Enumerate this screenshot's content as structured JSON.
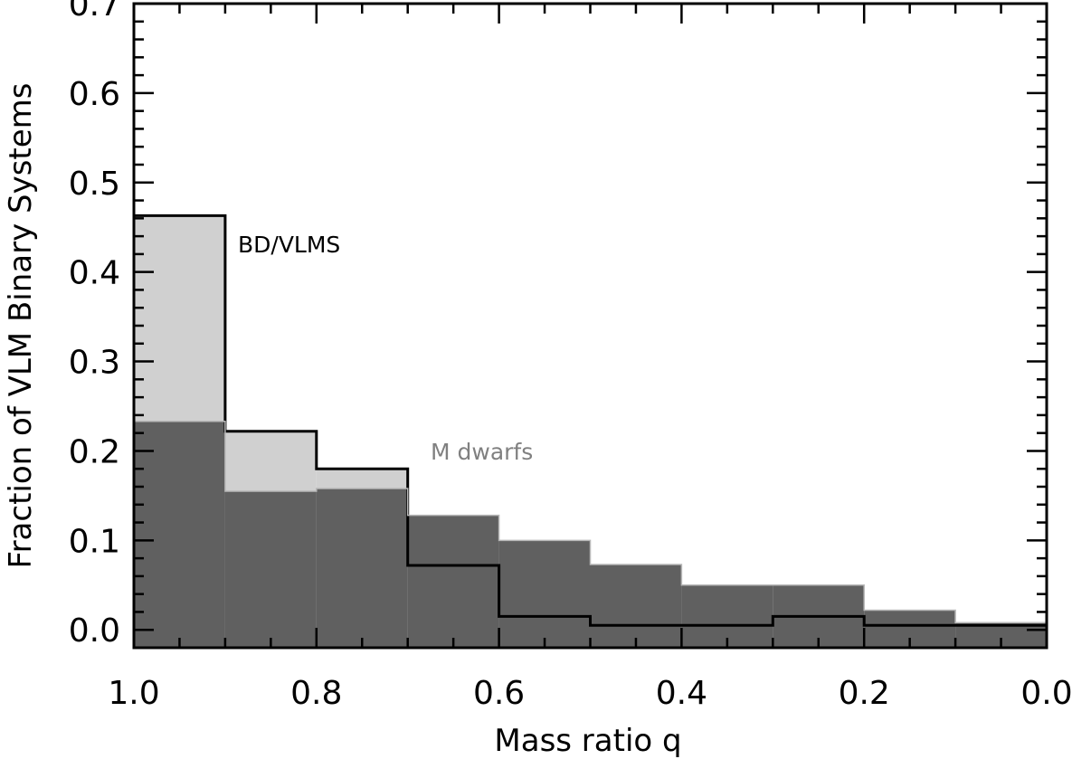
{
  "chart_data": {
    "type": "bar",
    "title": "",
    "xlabel": "Mass ratio q",
    "ylabel": "Fraction of VLM Binary Systems",
    "xlim": [
      1.0,
      0.0
    ],
    "ylim": [
      -0.02,
      0.7
    ],
    "x_ticks": [
      "1.0",
      "0.8",
      "0.6",
      "0.4",
      "0.2",
      "0.0"
    ],
    "y_ticks": [
      "0.0",
      "0.1",
      "0.2",
      "0.3",
      "0.4",
      "0.5",
      "0.6",
      "0.7"
    ],
    "bin_edges": [
      1.0,
      0.9,
      0.8,
      0.7,
      0.6,
      0.5,
      0.4,
      0.3,
      0.2,
      0.1,
      0.0
    ],
    "series": [
      {
        "name": "BD/VLMS",
        "values": [
          0.463,
          0.222,
          0.18,
          0.072,
          0.015,
          0.005,
          0.005,
          0.015,
          0.005,
          0.005
        ],
        "fill": "#d0d0d0",
        "stroke": "#000000"
      },
      {
        "name": "M dwarfs",
        "values": [
          0.233,
          0.155,
          0.158,
          0.128,
          0.1,
          0.073,
          0.05,
          0.05,
          0.022,
          0.008
        ],
        "fill": "#606060",
        "stroke": "#b8b8b8"
      }
    ],
    "annotations": [
      {
        "text": "BD/VLMS",
        "color": "#000000"
      },
      {
        "text": "M dwarfs",
        "color": "#808080"
      }
    ],
    "grid": false
  }
}
